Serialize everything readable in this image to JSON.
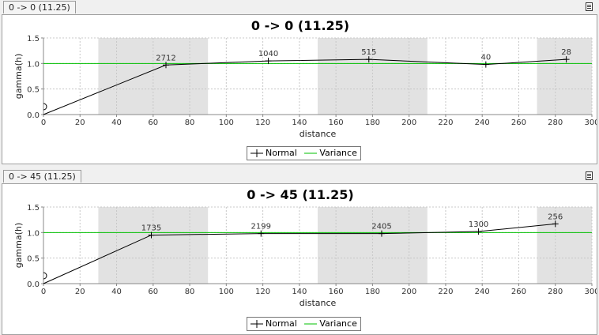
{
  "panels": [
    {
      "tab_label": "0 -> 0 (11.25)",
      "menu_icon": "list-menu-icon",
      "chart_data": {
        "type": "line",
        "title": "0 -> 0 (11.25)",
        "xlabel": "distance",
        "ylabel": "gamma(h)",
        "xlim": [
          0,
          300
        ],
        "ylim": [
          0,
          1.5
        ],
        "xticks": [
          0,
          20,
          40,
          60,
          80,
          100,
          120,
          140,
          160,
          180,
          200,
          220,
          240,
          260,
          280,
          300
        ],
        "yticks": [
          0.0,
          0.5,
          1.0,
          1.5
        ],
        "grid": true,
        "shaded_bands": [
          [
            30,
            90
          ],
          [
            150,
            210
          ],
          [
            270,
            300
          ]
        ],
        "series": [
          {
            "name": "Normal",
            "color": "#000000",
            "marker": "plus",
            "x": [
              0,
              67,
              123,
              178,
              242,
              286
            ],
            "y": [
              0.0,
              0.97,
              1.05,
              1.08,
              0.98,
              1.08
            ],
            "labels": [
              "",
              "2712",
              "1040",
              "515",
              "40",
              "28"
            ]
          },
          {
            "name": "Variance",
            "color": "#00c000",
            "type": "hline",
            "y": 1.0
          }
        ],
        "legend": "bottom-center"
      }
    },
    {
      "tab_label": "0 -> 45 (11.25)",
      "menu_icon": "list-menu-icon",
      "chart_data": {
        "type": "line",
        "title": "0 -> 45 (11.25)",
        "xlabel": "distance",
        "ylabel": "gamma(h)",
        "xlim": [
          0,
          300
        ],
        "ylim": [
          0,
          1.5
        ],
        "xticks": [
          0,
          20,
          40,
          60,
          80,
          100,
          120,
          140,
          160,
          180,
          200,
          220,
          240,
          260,
          280,
          300
        ],
        "yticks": [
          0.0,
          0.5,
          1.0,
          1.5
        ],
        "grid": true,
        "shaded_bands": [
          [
            30,
            90
          ],
          [
            150,
            210
          ],
          [
            270,
            300
          ]
        ],
        "series": [
          {
            "name": "Normal",
            "color": "#000000",
            "marker": "plus",
            "x": [
              0,
              59,
              119,
              185,
              238,
              280
            ],
            "y": [
              0.0,
              0.95,
              0.98,
              0.98,
              1.02,
              1.17
            ],
            "labels": [
              "",
              "1735",
              "2199",
              "2405",
              "1300",
              "256"
            ]
          },
          {
            "name": "Variance",
            "color": "#00c000",
            "type": "hline",
            "y": 1.0
          }
        ],
        "legend": "bottom-center"
      }
    }
  ]
}
